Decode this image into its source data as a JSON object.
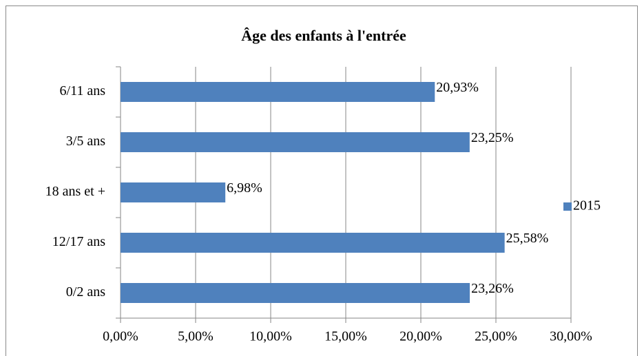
{
  "chart_data": {
    "type": "bar",
    "orientation": "horizontal",
    "title": "Âge des enfants à l'entrée",
    "categories": [
      "0/2 ans",
      "12/17 ans",
      "18 ans et +",
      "3/5 ans",
      "6/11 ans"
    ],
    "series": [
      {
        "name": "2015",
        "color": "#4f81bd",
        "values": [
          23.26,
          25.58,
          6.98,
          23.25,
          20.93
        ],
        "value_labels": [
          "23,26%",
          "25,58%",
          "6,98%",
          "23,25%",
          "20,93%"
        ]
      }
    ],
    "xlim": [
      0,
      30
    ],
    "xticks": [
      {
        "value": 0,
        "label": "0,00%"
      },
      {
        "value": 5,
        "label": "5,00%"
      },
      {
        "value": 10,
        "label": "10,00%"
      },
      {
        "value": 15,
        "label": "15,00%"
      },
      {
        "value": 20,
        "label": "20,00%"
      },
      {
        "value": 25,
        "label": "25,00%"
      },
      {
        "value": 30,
        "label": "30,00%"
      }
    ],
    "grid": true,
    "legend": "right"
  }
}
